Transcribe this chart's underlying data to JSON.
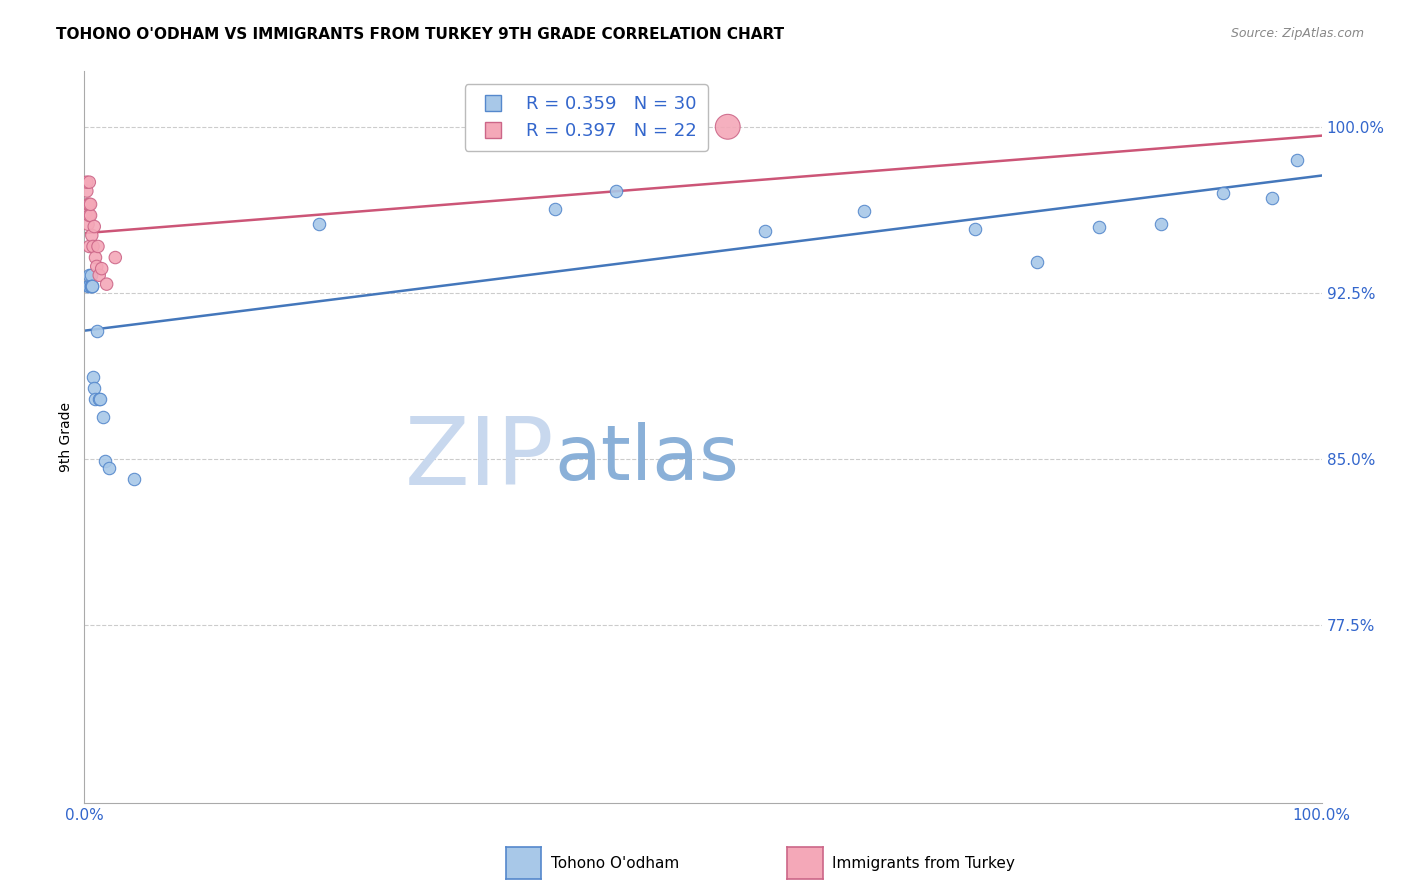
{
  "title": "TOHONO O'ODHAM VS IMMIGRANTS FROM TURKEY 9TH GRADE CORRELATION CHART",
  "source": "Source: ZipAtlas.com",
  "ylabel": "9th Grade",
  "ytick_labels": [
    "77.5%",
    "85.0%",
    "92.5%",
    "100.0%"
  ],
  "ytick_values": [
    0.775,
    0.85,
    0.925,
    1.0
  ],
  "xtick_labels": [
    "0.0%",
    "100.0%"
  ],
  "xtick_values": [
    0.0,
    1.0
  ],
  "xlim": [
    0.0,
    1.0
  ],
  "ylim": [
    0.695,
    1.025
  ],
  "blue_R": 0.359,
  "blue_N": 30,
  "pink_R": 0.397,
  "pink_N": 22,
  "blue_label": "Tohono O'odham",
  "pink_label": "Immigrants from Turkey",
  "blue_color": "#a8c8e8",
  "pink_color": "#f4a8b8",
  "blue_edge_color": "#5588cc",
  "pink_edge_color": "#cc6688",
  "blue_line_color": "#4477bb",
  "pink_line_color": "#cc5577",
  "blue_x": [
    0.003,
    0.004,
    0.004,
    0.005,
    0.005,
    0.005,
    0.006,
    0.006,
    0.007,
    0.008,
    0.009,
    0.01,
    0.012,
    0.013,
    0.015,
    0.017,
    0.02,
    0.04,
    0.19,
    0.38,
    0.43,
    0.55,
    0.63,
    0.72,
    0.77,
    0.82,
    0.87,
    0.92,
    0.96,
    0.98
  ],
  "blue_y": [
    0.928,
    0.928,
    0.933,
    0.928,
    0.933,
    0.928,
    0.928,
    0.928,
    0.887,
    0.882,
    0.877,
    0.908,
    0.877,
    0.877,
    0.869,
    0.849,
    0.846,
    0.841,
    0.956,
    0.963,
    0.971,
    0.953,
    0.962,
    0.954,
    0.939,
    0.955,
    0.956,
    0.97,
    0.968,
    0.985
  ],
  "pink_x": [
    0.001,
    0.002,
    0.002,
    0.003,
    0.003,
    0.004,
    0.004,
    0.004,
    0.004,
    0.005,
    0.005,
    0.006,
    0.007,
    0.008,
    0.009,
    0.01,
    0.011,
    0.012,
    0.014,
    0.018,
    0.025,
    0.52
  ],
  "pink_y": [
    0.961,
    0.971,
    0.975,
    0.956,
    0.965,
    0.96,
    0.965,
    0.975,
    0.946,
    0.96,
    0.965,
    0.951,
    0.946,
    0.955,
    0.941,
    0.937,
    0.946,
    0.933,
    0.936,
    0.929,
    0.941,
    1.0
  ],
  "pink_sizes_scale": [
    1,
    1,
    1,
    1,
    1,
    1,
    1,
    1,
    1,
    1,
    1,
    1,
    1,
    1,
    1,
    1,
    1,
    1,
    1,
    1,
    1,
    4
  ],
  "blue_trend": [
    0.908,
    0.978
  ],
  "pink_trend": [
    0.952,
    0.996
  ],
  "dot_size": 80,
  "big_dot_size": 320,
  "watermark_zip": "ZIP",
  "watermark_atlas": "atlas",
  "watermark_zip_color": "#c8d8ee",
  "watermark_atlas_color": "#8ab0d8",
  "background_color": "#ffffff",
  "grid_color": "#cccccc",
  "tick_label_color": "#3366cc",
  "source_color": "#888888"
}
